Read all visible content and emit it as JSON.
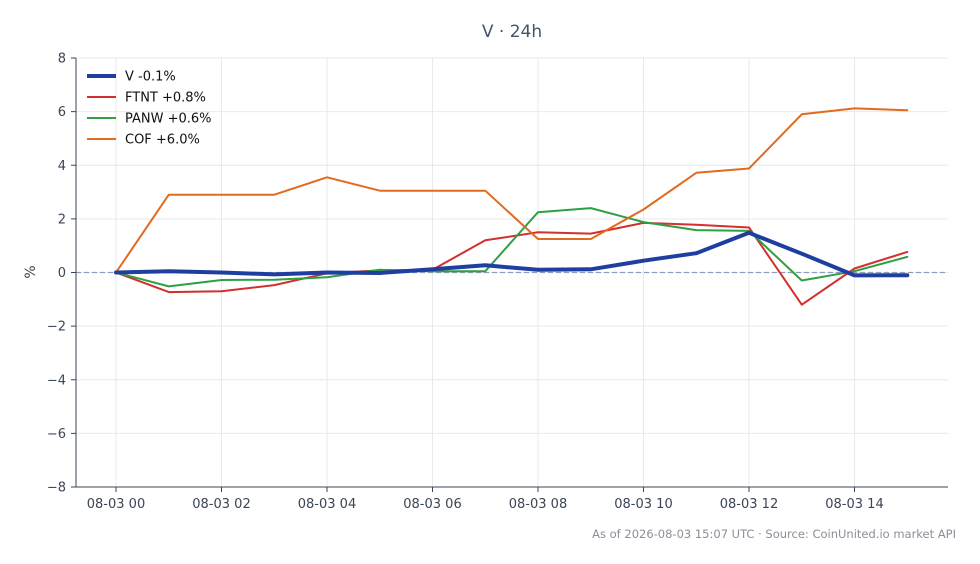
{
  "chart_data": {
    "type": "line",
    "title": "V · 24h",
    "xlabel": "",
    "ylabel": "%",
    "x": [
      "08-03 00",
      "08-03 01",
      "08-03 02",
      "08-03 03",
      "08-03 04",
      "08-03 05",
      "08-03 06",
      "08-03 07",
      "08-03 08",
      "08-03 09",
      "08-03 10",
      "08-03 11",
      "08-03 12",
      "08-03 13",
      "08-03 14",
      "08-03 15"
    ],
    "x_tick_labels": [
      "08-03 00",
      "08-03 02",
      "08-03 04",
      "08-03 06",
      "08-03 08",
      "08-03 10",
      "08-03 12",
      "08-03 14"
    ],
    "ylim": [
      -8,
      8
    ],
    "y_ticks": [
      8,
      6,
      4,
      2,
      0,
      -2,
      -4,
      -6,
      -8
    ],
    "y_tick_labels": [
      "8",
      "6",
      "4",
      "2",
      "0",
      "−2",
      "−4",
      "−6",
      "−8"
    ],
    "grid": true,
    "legend_position": "top-left",
    "baseline": 0,
    "series": [
      {
        "name": "V -0.1%",
        "color": "#1f3fa0",
        "width": 4,
        "values": [
          0.0,
          0.05,
          0.0,
          -0.07,
          0.0,
          -0.02,
          0.12,
          0.27,
          0.1,
          0.12,
          0.44,
          0.72,
          1.48,
          0.7,
          -0.11,
          -0.1
        ]
      },
      {
        "name": "FTNT +0.8%",
        "color": "#d32f2f",
        "width": 2,
        "values": [
          0.0,
          -0.73,
          -0.7,
          -0.47,
          -0.03,
          0.08,
          0.1,
          1.2,
          1.5,
          1.45,
          1.85,
          1.78,
          1.68,
          -1.2,
          0.15,
          0.77
        ]
      },
      {
        "name": "PANW +0.6%",
        "color": "#2ea043",
        "width": 2,
        "values": [
          0.0,
          -0.52,
          -0.28,
          -0.27,
          -0.18,
          0.1,
          0.05,
          0.05,
          2.25,
          2.4,
          1.88,
          1.58,
          1.55,
          -0.3,
          0.05,
          0.58
        ]
      },
      {
        "name": "COF +6.0%",
        "color": "#e26a1e",
        "width": 2,
        "values": [
          0.0,
          2.9,
          2.9,
          2.9,
          3.55,
          3.05,
          3.05,
          3.05,
          1.25,
          1.25,
          2.35,
          3.72,
          3.88,
          5.9,
          6.12,
          6.05
        ]
      }
    ]
  },
  "footer": "As of 2026-08-03 15:07 UTC · Source: CoinUnited.io market API"
}
